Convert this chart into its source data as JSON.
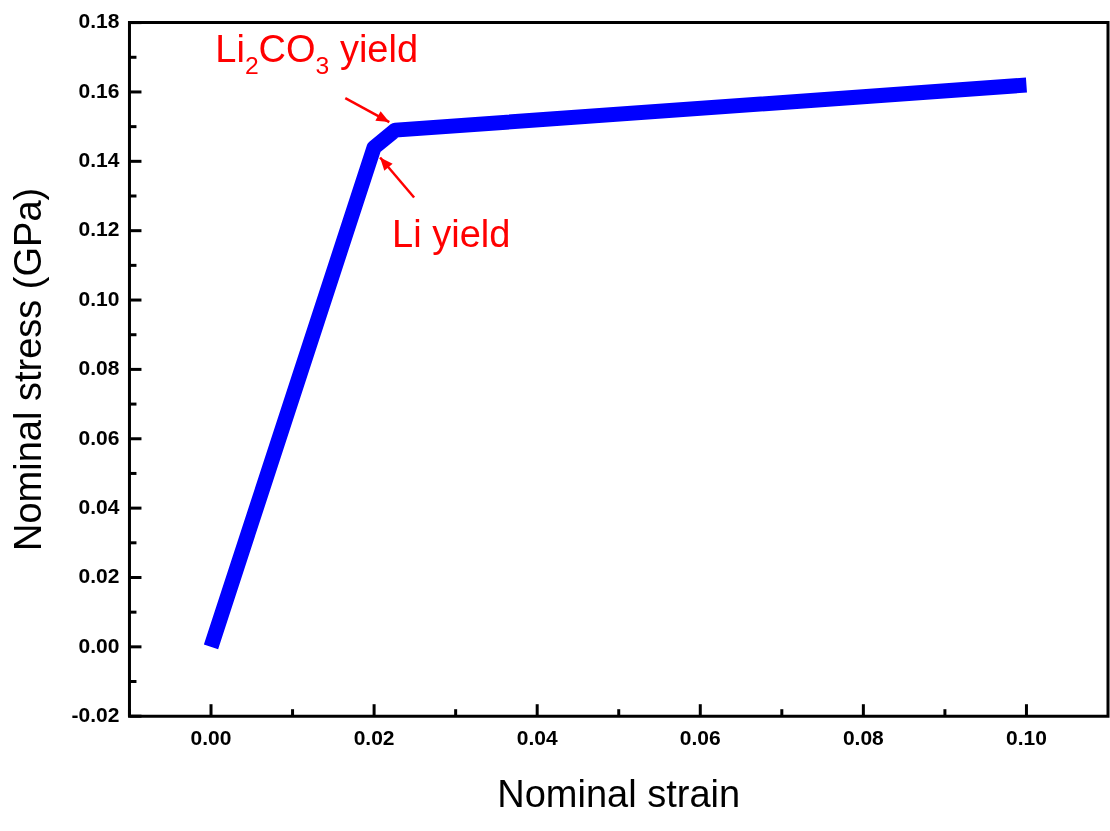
{
  "chart_data": {
    "type": "line",
    "xlabel": "Nominal strain",
    "ylabel": "Nominal stress (GPa)",
    "series": [
      {
        "color": "#0000ff",
        "x": [
          0,
          0.02,
          0.0226,
          0.1
        ],
        "values": [
          0,
          0.144,
          0.149,
          0.162
        ]
      }
    ],
    "xlim": [
      -0.01,
      0.11
    ],
    "xticks": [
      {
        "value": -0.01,
        "label": null
      },
      {
        "value": 0,
        "label": "0.00"
      },
      {
        "value": 0.01,
        "label": null
      },
      {
        "value": 0.02,
        "label": "0.02"
      },
      {
        "value": 0.03,
        "label": null
      },
      {
        "value": 0.04,
        "label": "0.04"
      },
      {
        "value": 0.05,
        "label": null
      },
      {
        "value": 0.06,
        "label": "0.06"
      },
      {
        "value": 0.07,
        "label": null
      },
      {
        "value": 0.08,
        "label": "0.08"
      },
      {
        "value": 0.09,
        "label": null
      },
      {
        "value": 0.1,
        "label": "0.10"
      }
    ],
    "ylim": [
      -0.02,
      0.18
    ],
    "yticks": [
      {
        "value": -0.02,
        "label": "-0.02"
      },
      {
        "value": -0.01,
        "label": null
      },
      {
        "value": 0,
        "label": "0.00"
      },
      {
        "value": 0.01,
        "label": null
      },
      {
        "value": 0.02,
        "label": "0.02"
      },
      {
        "value": 0.03,
        "label": null
      },
      {
        "value": 0.04,
        "label": "0.04"
      },
      {
        "value": 0.05,
        "label": null
      },
      {
        "value": 0.06,
        "label": "0.06"
      },
      {
        "value": 0.07,
        "label": null
      },
      {
        "value": 0.08,
        "label": "0.08"
      },
      {
        "value": 0.09,
        "label": null
      },
      {
        "value": 0.1,
        "label": "0.10"
      },
      {
        "value": 0.11,
        "label": null
      },
      {
        "value": 0.12,
        "label": "0.12"
      },
      {
        "value": 0.13,
        "label": null
      },
      {
        "value": 0.14,
        "label": "0.14"
      },
      {
        "value": 0.15,
        "label": null
      },
      {
        "value": 0.16,
        "label": "0.16"
      },
      {
        "value": 0.17,
        "label": null
      },
      {
        "value": 0.18,
        "label": "0.18"
      }
    ],
    "annotations": [
      {
        "text": "Li$_{2}$CO$_{3}$ yield",
        "x": 0.0226,
        "y": 0.149
      },
      {
        "text": "Li yield",
        "x": 0.02,
        "y": 0.144
      }
    ],
    "grid": false,
    "legend": false,
    "marker": "none",
    "line_style": "solid"
  }
}
